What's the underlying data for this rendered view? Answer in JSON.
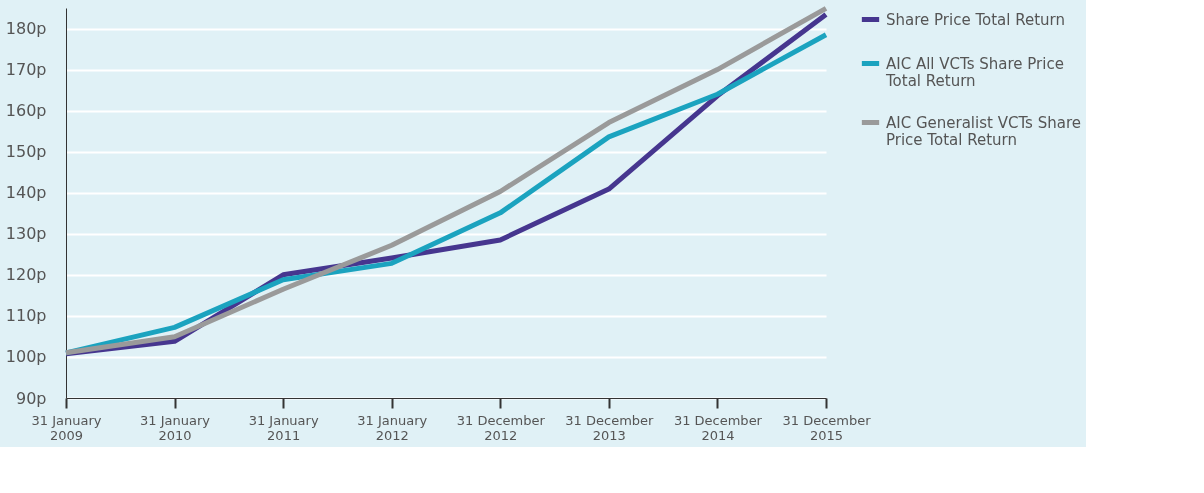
{
  "chart_data": {
    "type": "line",
    "categories": [
      "31 January 2009",
      "31 January 2010",
      "31 January 2011",
      "31 January 2012",
      "31 December 2012",
      "31 December 2013",
      "31 December 2014",
      "31 December 2015"
    ],
    "series": [
      {
        "name": "Share Price Total Return",
        "color": "#46368f",
        "values": [
          100.8,
          103.8,
          120.0,
          124.1,
          128.5,
          140.9,
          163.6,
          183.4
        ]
      },
      {
        "name": "AIC All VCTs Share Price Total Return",
        "color": "#1ba3bf",
        "values": [
          101.0,
          107.2,
          118.8,
          122.8,
          135.1,
          153.6,
          164.0,
          178.5
        ]
      },
      {
        "name": "AIC Generalist VCTs Share Price Total Return",
        "color": "#9a9a9a",
        "values": [
          101.0,
          104.9,
          116.5,
          127.2,
          140.3,
          157.1,
          170.0,
          184.9
        ]
      }
    ],
    "ylim": [
      90,
      185
    ],
    "yticks": [
      {
        "value": 90,
        "label": "90p"
      },
      {
        "value": 100,
        "label": "100p"
      },
      {
        "value": 110,
        "label": "110p"
      },
      {
        "value": 120,
        "label": "120p"
      },
      {
        "value": 130,
        "label": "130p"
      },
      {
        "value": 140,
        "label": "140p"
      },
      {
        "value": 150,
        "label": "150p"
      },
      {
        "value": 160,
        "label": "160p"
      },
      {
        "value": 170,
        "label": "170p"
      },
      {
        "value": 180,
        "label": "180p"
      }
    ],
    "grid": "y",
    "legend": "right",
    "marker": "none",
    "line_style": "solid"
  }
}
